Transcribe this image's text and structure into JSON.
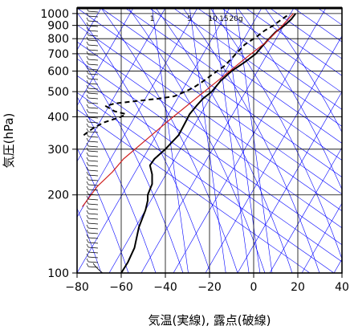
{
  "chart_data": {
    "type": "line",
    "title": "",
    "xlabel": "気温(実線), 露点(破線)",
    "ylabel": "気圧(hPa)",
    "xlim": [
      -80,
      40
    ],
    "ylim": [
      1050,
      100
    ],
    "y_scale": "log",
    "x_ticks": [
      "−80",
      "−60",
      "−40",
      "−20",
      "0",
      "20",
      "40"
    ],
    "x_tick_values": [
      -80,
      -60,
      -40,
      -20,
      0,
      20,
      40
    ],
    "y_ticks": [
      "100",
      "200",
      "300",
      "400",
      "500",
      "600",
      "700",
      "800",
      "900",
      "1000"
    ],
    "y_tick_values": [
      100,
      200,
      300,
      400,
      500,
      600,
      700,
      800,
      900,
      1000
    ],
    "mixing_ratio_labels": [
      {
        "text": "1",
        "temp_at_top": -46
      },
      {
        "text": "5",
        "temp_at_top": -29
      },
      {
        "text": "10",
        "temp_at_top": -18.5
      },
      {
        "text": "15",
        "temp_at_top": -13.5
      },
      {
        "text": "20g",
        "temp_at_top": -8
      }
    ],
    "series": [
      {
        "style": "solid",
        "color": "#000000",
        "points": [
          [
            -60,
            100
          ],
          [
            -57,
            110
          ],
          [
            -54,
            125
          ],
          [
            -52,
            150
          ],
          [
            -49,
            175
          ],
          [
            -48,
            190
          ],
          [
            -48,
            200
          ],
          [
            -47,
            210
          ],
          [
            -46,
            220
          ],
          [
            -46,
            240
          ],
          [
            -47,
            260
          ],
          [
            -45,
            275
          ],
          [
            -40,
            300
          ],
          [
            -34,
            340
          ],
          [
            -31,
            380
          ],
          [
            -29,
            410
          ],
          [
            -26,
            440
          ],
          [
            -23,
            470
          ],
          [
            -19,
            500
          ],
          [
            -15,
            550
          ],
          [
            -10,
            600
          ],
          [
            -4,
            650
          ],
          [
            1,
            700
          ],
          [
            4,
            750
          ],
          [
            7,
            800
          ],
          [
            10,
            850
          ],
          [
            14,
            900
          ],
          [
            17,
            950
          ],
          [
            19,
            1000
          ]
        ]
      },
      {
        "style": "dashed",
        "color": "#000000",
        "points": [
          [
            -77,
            340
          ],
          [
            -73,
            360
          ],
          [
            -68,
            380
          ],
          [
            -60,
            400
          ],
          [
            -58,
            410
          ],
          [
            -63,
            420
          ],
          [
            -67,
            440
          ],
          [
            -63,
            450
          ],
          [
            -53,
            460
          ],
          [
            -43,
            470
          ],
          [
            -36,
            480
          ],
          [
            -31,
            500
          ],
          [
            -27,
            520
          ],
          [
            -24,
            540
          ],
          [
            -19,
            580
          ],
          [
            -13,
            630
          ],
          [
            -8,
            700
          ],
          [
            -4,
            760
          ],
          [
            1,
            810
          ],
          [
            5,
            860
          ],
          [
            9,
            900
          ],
          [
            12,
            940
          ],
          [
            15,
            980
          ],
          [
            16,
            1000
          ]
        ]
      },
      {
        "style": "solid",
        "color": "#d0201f",
        "points": [
          [
            -77.6,
            180
          ],
          [
            -71,
            215
          ],
          [
            -64,
            245
          ],
          [
            -59,
            275
          ],
          [
            -48,
            330
          ],
          [
            -38,
            390
          ],
          [
            -25,
            480
          ],
          [
            -13,
            580
          ],
          [
            -3,
            680
          ],
          [
            6,
            780
          ],
          [
            12,
            880
          ],
          [
            18,
            1000
          ]
        ]
      }
    ],
    "wind_barbs": "left side, every level from 100 to 1000 hPa",
    "grid": true,
    "background_lines": {
      "isotherm_color": "#0000ff",
      "adiabat_color": "#0000ff"
    }
  }
}
